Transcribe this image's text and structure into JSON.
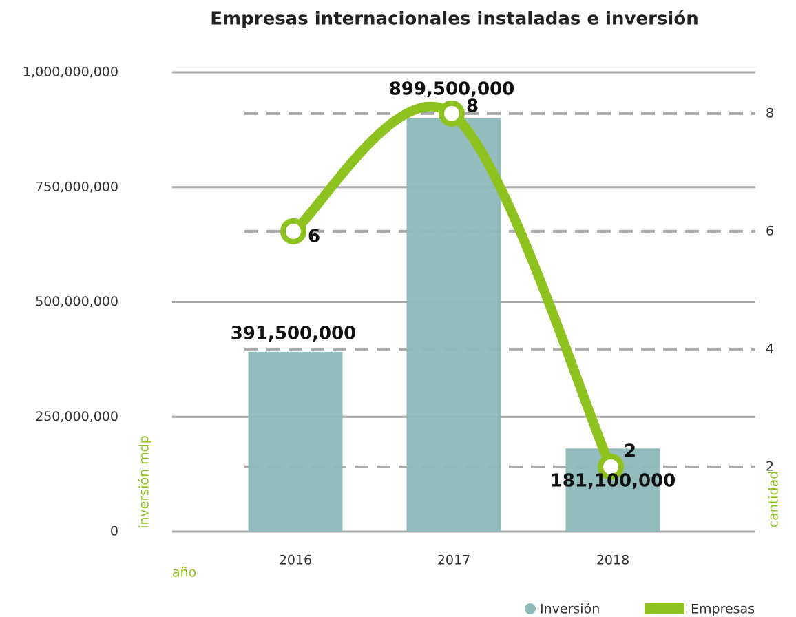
{
  "chart_data": {
    "type": "bar-line",
    "title": "Empresas internacionales instaladas e inversión",
    "categories": [
      "2016",
      "2017",
      "2018"
    ],
    "x_label": "año",
    "y_label": "inversión mdp",
    "y2_label": "cantidad",
    "series": [
      {
        "name": "Inversión",
        "type": "bar",
        "color": "#8db8b8",
        "values": [
          391500000,
          899500000,
          181100000
        ],
        "value_labels": [
          "391,500,000",
          "899,500,000",
          "181,100,000"
        ]
      },
      {
        "name": "Empresas",
        "type": "line",
        "axis": "y2",
        "color": "#8dc21f",
        "values": [
          6,
          8,
          2
        ]
      }
    ],
    "ylim": [
      0,
      1000000000
    ],
    "yticks": [
      0,
      {
        "value": 250000000,
        "label": "250,000,000"
      },
      {
        "value": 500000000,
        "label": "500,000,000"
      },
      {
        "value": 750000000,
        "label": "750,000,000"
      },
      {
        "value": 1000000000,
        "label": "1,000,000,000"
      }
    ],
    "y2lim": [
      0.9,
      8.7
    ],
    "y2ticks": [
      2,
      4,
      6,
      8
    ],
    "grid": true
  }
}
